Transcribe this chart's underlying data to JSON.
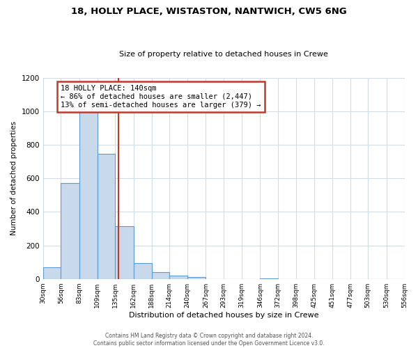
{
  "title": "18, HOLLY PLACE, WISTASTON, NANTWICH, CW5 6NG",
  "subtitle": "Size of property relative to detached houses in Crewe",
  "xlabel": "Distribution of detached houses by size in Crewe",
  "ylabel": "Number of detached properties",
  "bar_edges": [
    30,
    56,
    83,
    109,
    135,
    162,
    188,
    214,
    240,
    267,
    293,
    319,
    346,
    372,
    398,
    425,
    451,
    477,
    503,
    530,
    556
  ],
  "bar_heights": [
    70,
    570,
    1000,
    745,
    315,
    95,
    40,
    20,
    10,
    0,
    0,
    0,
    5,
    0,
    0,
    0,
    0,
    0,
    0,
    0
  ],
  "bar_color": "#c9d9ec",
  "bar_edge_color": "#5b9bd5",
  "tick_labels": [
    "30sqm",
    "56sqm",
    "83sqm",
    "109sqm",
    "135sqm",
    "162sqm",
    "188sqm",
    "214sqm",
    "240sqm",
    "267sqm",
    "293sqm",
    "319sqm",
    "346sqm",
    "372sqm",
    "398sqm",
    "425sqm",
    "451sqm",
    "477sqm",
    "503sqm",
    "530sqm",
    "556sqm"
  ],
  "annotation_title": "18 HOLLY PLACE: 140sqm",
  "annotation_line1": "← 86% of detached houses are smaller (2,447)",
  "annotation_line2": "13% of semi-detached houses are larger (379) →",
  "vline_x": 140,
  "vline_color": "#c0392b",
  "annotation_box_color": "#c0392b",
  "ylim": [
    0,
    1200
  ],
  "yticks": [
    0,
    200,
    400,
    600,
    800,
    1000,
    1200
  ],
  "background_color": "#ffffff",
  "grid_color": "#d0dce8",
  "footer_line1": "Contains HM Land Registry data © Crown copyright and database right 2024.",
  "footer_line2": "Contains public sector information licensed under the Open Government Licence v3.0."
}
